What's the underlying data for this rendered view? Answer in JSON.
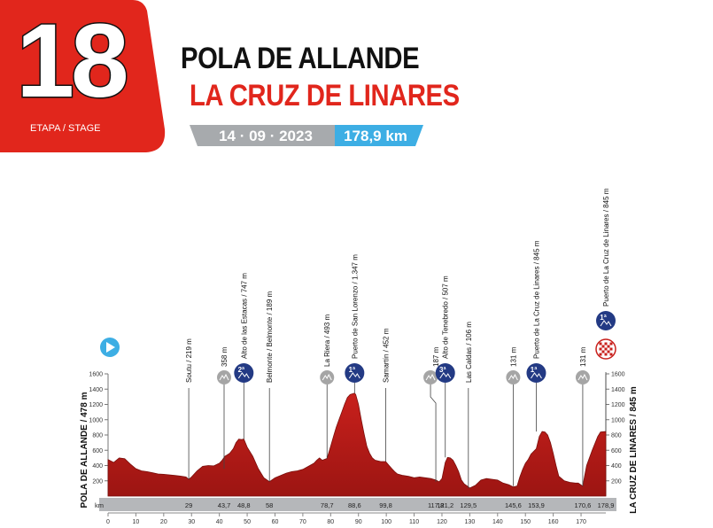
{
  "header": {
    "stage_number": "18",
    "stage_caption": "ETAPA / STAGE",
    "start_city": "POLA DE ALLANDE",
    "finish_city": "LA CRUZ DE LINARES",
    "date": "14 · 09 · 2023",
    "distance": "178,9 km",
    "colors": {
      "badge": "#e1261c",
      "finish_title": "#e1261c",
      "date_bar": "#a7aaad",
      "distance_bar": "#3daee4"
    }
  },
  "chart_data": {
    "type": "area",
    "title": "",
    "xlabel": "km",
    "ylabel": "m",
    "xlim": [
      0,
      178.9
    ],
    "ylim": [
      0,
      1600
    ],
    "x_ticks": [
      0,
      10,
      20,
      30,
      40,
      50,
      60,
      70,
      80,
      90,
      100,
      110,
      120,
      130,
      140,
      150,
      160,
      170
    ],
    "y_ticks": [
      200,
      400,
      600,
      800,
      1000,
      1200,
      1400,
      1600
    ],
    "start_label": "POLA DE ALLANDE / 478 m",
    "finish_label": "LA CRUZ DE LINARES / 845 m",
    "colors": {
      "fill": "#c8201c",
      "fill_dark": "#9c1512",
      "climb_badge": "#233a84",
      "sprint_badge": "#a5a5a5",
      "axis_band": "#b5b7ba",
      "start_icon": "#3daee4"
    },
    "series": [
      {
        "x": [
          0,
          2,
          4,
          6,
          8,
          10,
          12,
          14,
          16,
          18,
          20,
          22,
          24,
          26,
          28,
          29,
          30,
          32,
          34,
          36,
          38,
          40,
          41,
          42,
          43.7,
          45,
          46,
          47,
          48,
          48.8,
          50,
          52,
          54,
          56,
          58,
          60,
          62,
          64,
          66,
          68,
          70,
          72,
          74,
          75,
          76,
          77,
          78.7,
          80,
          81,
          82,
          83,
          84,
          85,
          86,
          87,
          88,
          88.6,
          89,
          90,
          91,
          92,
          93,
          94,
          95,
          96,
          98,
          99.8,
          101,
          102,
          103,
          104,
          106,
          108,
          110,
          112,
          114,
          116,
          117.8,
          119,
          120,
          121.2,
          122,
          123,
          124,
          125,
          126,
          127,
          128,
          129.5,
          130,
          132,
          134,
          136,
          138,
          140,
          142,
          144,
          145.6,
          147,
          148,
          149,
          150,
          151,
          152,
          153.9,
          155,
          156,
          157,
          158,
          159,
          160,
          161,
          162,
          164,
          166,
          168,
          169,
          170.6,
          172,
          174,
          176,
          177,
          178.9
        ],
        "y": [
          478,
          440,
          500,
          490,
          420,
          360,
          330,
          320,
          305,
          290,
          285,
          278,
          270,
          262,
          250,
          219,
          250,
          330,
          390,
          400,
          395,
          430,
          470,
          520,
          560,
          620,
          700,
          745,
          740,
          747,
          640,
          520,
          360,
          240,
          189,
          240,
          270,
          300,
          320,
          330,
          350,
          390,
          430,
          470,
          500,
          470,
          493,
          650,
          780,
          900,
          1000,
          1100,
          1200,
          1290,
          1330,
          1340,
          1347,
          1330,
          1200,
          1000,
          820,
          650,
          560,
          500,
          470,
          452,
          452,
          400,
          360,
          320,
          290,
          270,
          260,
          240,
          250,
          240,
          230,
          210,
          187,
          230,
          440,
          507,
          500,
          470,
          400,
          320,
          210,
          160,
          120,
          106,
          140,
          210,
          230,
          220,
          210,
          170,
          150,
          120,
          131,
          250,
          350,
          430,
          480,
          550,
          620,
          780,
          845,
          840,
          800,
          700,
          560,
          400,
          260,
          200,
          180,
          170,
          170,
          131,
          400,
          600,
          780,
          840,
          845
        ],
        "labels": [
          {
            "km": 29,
            "alt": 219,
            "text": "Soutu / 219 m",
            "kind": "none"
          },
          {
            "km": 41.7,
            "alt": 358,
            "text": "358 m",
            "kind": "sprint"
          },
          {
            "km": 48.8,
            "alt": 747,
            "text": "Alto de las Estacas / 747 m",
            "kind": "cat2",
            "badge": "2ª"
          },
          {
            "km": 58,
            "alt": 189,
            "text": "Belmonte / Belmonte / 189 m",
            "kind": "none"
          },
          {
            "km": 78.7,
            "alt": 493,
            "text": "La Riera / 493 m",
            "kind": "sprint"
          },
          {
            "km": 88.6,
            "alt": 1347,
            "text": "Puerto de San Lorenzo / 1.347 m",
            "kind": "cat1",
            "badge": "1ª"
          },
          {
            "km": 99.8,
            "alt": 452,
            "text": "Samartín / 452 m",
            "kind": "none"
          },
          {
            "km": 117.8,
            "alt": 187,
            "text": "187 m",
            "kind": "sprint"
          },
          {
            "km": 121.2,
            "alt": 507,
            "text": "Alto de Tenebredo / 507 m",
            "kind": "cat3",
            "badge": "3ª"
          },
          {
            "km": 129.5,
            "alt": 106,
            "text": "Las Caldas / 106 m",
            "kind": "none"
          },
          {
            "km": 145.6,
            "alt": 131,
            "text": "131 m",
            "kind": "sprint"
          },
          {
            "km": 153.9,
            "alt": 845,
            "text": "Puerto de La Cruz de Linares / 845 m",
            "kind": "cat1",
            "badge": "1ª"
          },
          {
            "km": 170.6,
            "alt": 131,
            "text": "131 m",
            "kind": "sprint"
          },
          {
            "km": 178.9,
            "alt": 845,
            "text": "Puerto de La Cruz de Linares / 845 m",
            "kind": "finish",
            "badge": "1ª"
          }
        ],
        "km_marks": [
          "29",
          "43,7",
          "48,8",
          "58",
          "78,7",
          "88,6",
          "99,8",
          "117,8",
          "121,2",
          "129,5",
          "145,6",
          "153,9",
          "170,6",
          "178,9"
        ]
      }
    ]
  }
}
